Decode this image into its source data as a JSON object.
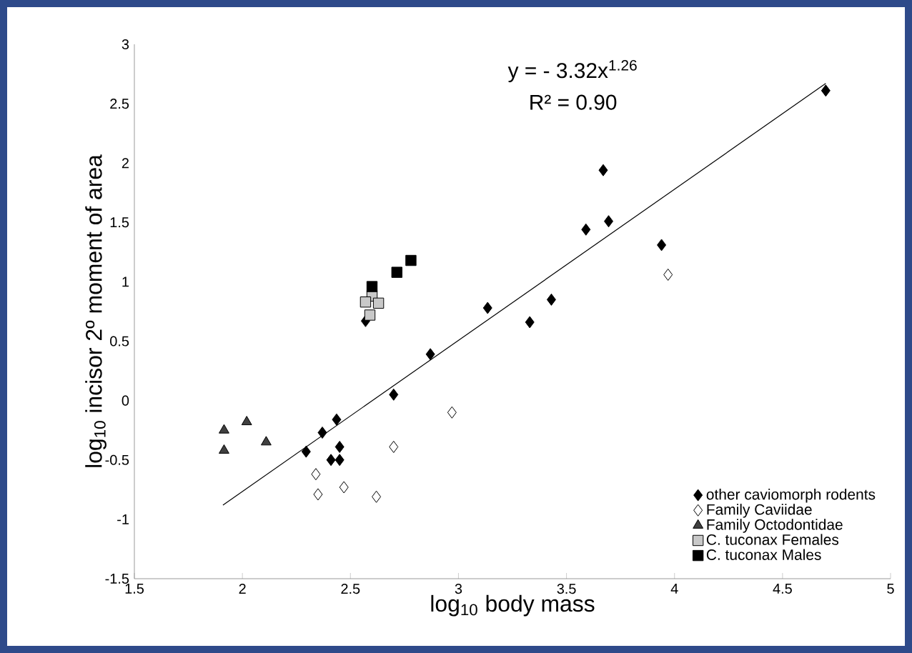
{
  "chart_data": {
    "type": "scatter",
    "xlabel": "log$_{10}$ body mass",
    "ylabel": "log$_{10}$ incisor 2º moment of area",
    "annotations": [
      "y = - 3.32x$^{1.26}$",
      "R² = 0.90"
    ],
    "xlim": [
      1.5,
      5
    ],
    "ylim": [
      -1.5,
      3
    ],
    "xticks": [
      1.5,
      2,
      2.5,
      3,
      3.5,
      4,
      4.5,
      5
    ],
    "yticks": [
      -1.5,
      -1,
      -0.5,
      0,
      0.5,
      1,
      1.5,
      2,
      2.5,
      3
    ],
    "grid": false,
    "legend": "bottom right",
    "series": [
      {
        "name": "other caviomorph rodents",
        "color": "#000000",
        "marker": "diamond",
        "x": [
          2.295,
          2.37,
          2.436,
          2.45,
          2.41,
          2.45,
          2.57,
          2.7,
          2.87,
          3.135,
          3.33,
          3.43,
          3.59,
          3.67,
          3.695,
          3.94,
          4.7
        ],
        "values": [
          -0.43,
          -0.27,
          -0.16,
          -0.39,
          -0.5,
          -0.5,
          0.67,
          0.05,
          0.39,
          0.78,
          0.66,
          0.85,
          1.44,
          1.94,
          1.51,
          1.31,
          2.61
        ]
      },
      {
        "name": "Family Caviidae",
        "color": "#ffffff",
        "marker": "diamond",
        "x": [
          2.34,
          2.35,
          2.47,
          2.62,
          2.7,
          2.97,
          3.97
        ],
        "values": [
          -0.62,
          -0.79,
          -0.73,
          -0.81,
          -0.39,
          -0.1,
          1.06
        ]
      },
      {
        "name": "Family Octodontidae",
        "color": "#404040",
        "marker": "triangle",
        "x": [
          1.915,
          1.915,
          2.02,
          2.11
        ],
        "values": [
          -0.25,
          -0.42,
          -0.18,
          -0.35
        ]
      },
      {
        "name": "C. tuconax Females",
        "color": "#c8c8c8",
        "marker": "square",
        "x": [
          2.6,
          2.57,
          2.63,
          2.59
        ],
        "values": [
          0.88,
          0.83,
          0.82,
          0.72
        ]
      },
      {
        "name": "C. tuconax Males",
        "color": "#000000",
        "marker": "square",
        "x": [
          2.6,
          2.715,
          2.78
        ],
        "values": [
          0.96,
          1.08,
          1.18
        ]
      },
      {
        "type": "line",
        "color": "#000000",
        "marker": "none",
        "x": [
          1.91,
          4.7
        ],
        "values": [
          -0.88,
          2.67
        ]
      }
    ]
  }
}
